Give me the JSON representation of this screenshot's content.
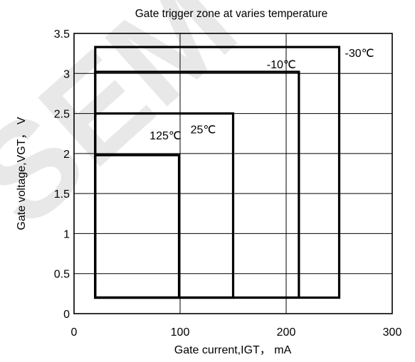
{
  "chart_data": {
    "type": "area",
    "title": "Gate trigger zone at varies temperature",
    "xlabel": "Gate current,IGT， mA",
    "ylabel": "Gate voltage,VGT， V",
    "xlim": [
      0,
      300
    ],
    "ylim": [
      0,
      3.5
    ],
    "x_ticks": [
      "0",
      "100",
      "200",
      "300"
    ],
    "y_ticks": [
      "0",
      "0.5",
      "1",
      "1.5",
      "2",
      "2.5",
      "3",
      "3.5"
    ],
    "grid": true,
    "zones": [
      {
        "label": "-30℃",
        "igt": [
          20,
          250
        ],
        "vgt": [
          0.2,
          3.33
        ]
      },
      {
        "label": "-10℃",
        "igt": [
          20,
          212
        ],
        "vgt": [
          0.2,
          3.02
        ]
      },
      {
        "label": "25℃",
        "igt": [
          20,
          150
        ],
        "vgt": [
          0.2,
          2.5
        ]
      },
      {
        "label": "125℃",
        "igt": [
          20,
          99
        ],
        "vgt": [
          0.2,
          1.98
        ]
      }
    ],
    "watermark": "SEM"
  }
}
